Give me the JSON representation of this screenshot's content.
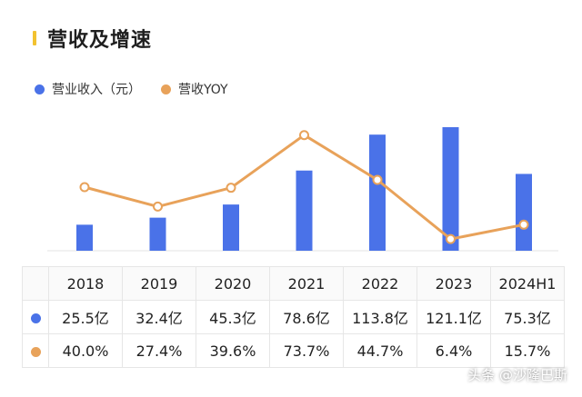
{
  "title": "营收及增速",
  "legend": [
    {
      "label": "营业收入（元）",
      "color": "#4a72e8"
    },
    {
      "label": "营收YOY",
      "color": "#e8a25a"
    }
  ],
  "colors": {
    "bar": "#4a72e8",
    "line": "#e8a25a",
    "title_accent": "#f2c230"
  },
  "watermark": "头条 @沙隆巴斯",
  "chart_data": {
    "type": "bar+line",
    "categories": [
      "2018",
      "2019",
      "2020",
      "2021",
      "2022",
      "2023",
      "2024H1"
    ],
    "series": [
      {
        "name": "营业收入（元）",
        "type": "bar",
        "unit": "亿",
        "values": [
          25.5,
          32.4,
          45.3,
          78.6,
          113.8,
          121.1,
          75.3
        ]
      },
      {
        "name": "营收YOY",
        "type": "line",
        "unit": "%",
        "values": [
          40.0,
          27.4,
          39.6,
          73.7,
          44.7,
          6.4,
          15.7
        ]
      }
    ],
    "bar_ylim": [
      0,
      130
    ],
    "line_ylim": [
      0,
      80
    ],
    "legend_position": "top-left",
    "grid": false
  },
  "table": {
    "headers": [
      "2018",
      "2019",
      "2020",
      "2021",
      "2022",
      "2023",
      "2024H1"
    ],
    "rows": [
      {
        "dot_color": "#4a72e8",
        "cells": [
          "25.5亿",
          "32.4亿",
          "45.3亿",
          "78.6亿",
          "113.8亿",
          "121.1亿",
          "75.3亿"
        ]
      },
      {
        "dot_color": "#e8a25a",
        "cells": [
          "40.0%",
          "27.4%",
          "39.6%",
          "73.7%",
          "44.7%",
          "6.4%",
          "15.7%"
        ]
      }
    ]
  }
}
